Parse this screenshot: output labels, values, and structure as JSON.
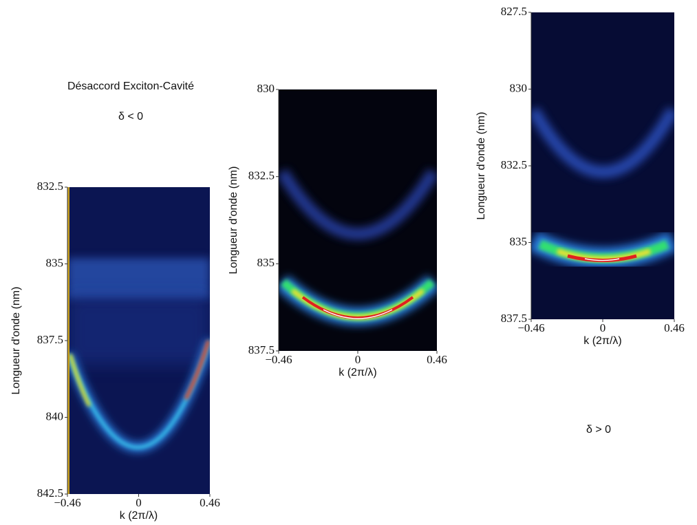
{
  "title": "Désaccord Exciton-Cavité",
  "annotations": [
    "δ < 0",
    "δ > 0"
  ],
  "chart_data": [
    {
      "type": "heatmap",
      "xlabel": "k (2π/λ)",
      "ylabel": "Longueur d'onde (nm)",
      "xlim": [
        -0.46,
        0.46
      ],
      "ylim": [
        832.5,
        842.5
      ],
      "y_inverted": true,
      "xticks": [
        {
          "value": -0.46,
          "label": "−0.46"
        },
        0,
        0.46
      ],
      "yticks": [
        832.5,
        835,
        837.5,
        840,
        842.5
      ]
    },
    {
      "type": "heatmap",
      "xlabel": "k (2π/λ)",
      "ylabel": "Longueur d'onde (nm)",
      "xlim": [
        -0.46,
        0.46
      ],
      "ylim": [
        830,
        837.5
      ],
      "y_inverted": true,
      "xticks": [
        {
          "value": -0.46,
          "label": "−0.46"
        },
        0,
        0.46
      ],
      "yticks": [
        830,
        832.5,
        835,
        837.5
      ]
    },
    {
      "type": "heatmap",
      "xlabel": "k (2π/λ)",
      "ylabel": "Longueur d'onde (nm)",
      "xlim": [
        -0.46,
        0.46
      ],
      "ylim": [
        827.5,
        837.5
      ],
      "y_inverted": true,
      "xticks": [
        {
          "value": -0.46,
          "label": "−0.46"
        },
        0,
        0.46
      ],
      "yticks": [
        827.5,
        830,
        832.5,
        835,
        837.5
      ]
    }
  ]
}
